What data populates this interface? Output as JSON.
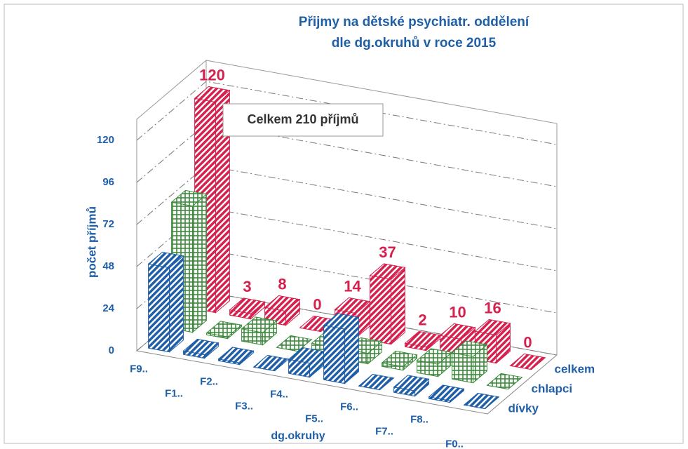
{
  "chart_data": {
    "type": "bar3d",
    "title": [
      "Přijmy na dětské psychiatr. oddělení",
      "dle dg.okruhů v roce 2015"
    ],
    "annotation": "Celkem 210 příjmů",
    "y_label": "počet příjmů",
    "x_label": "dg.okruhy",
    "categories": [
      "F9..",
      "F1..",
      "F2..",
      "F3..",
      "F4..",
      "F5..",
      "F6..",
      "F7..",
      "F8..",
      "F0.."
    ],
    "series": [
      {
        "name": "dívky",
        "color": "#1f5fa8",
        "pattern": "hatch",
        "values": [
          48,
          2,
          1,
          0,
          8,
          31,
          0,
          3,
          1,
          0
        ]
      },
      {
        "name": "chlapci",
        "color": "#3c8a3c",
        "pattern": "grid",
        "values": [
          72,
          1,
          7,
          0,
          6,
          6,
          2,
          7,
          15,
          0
        ]
      },
      {
        "name": "celkem",
        "color": "#d6204e",
        "pattern": "hatch",
        "values": [
          120,
          3,
          8,
          0,
          14,
          37,
          2,
          10,
          16,
          0
        ]
      }
    ],
    "ylim": [
      0,
      132
    ],
    "yticks": [
      0,
      24,
      48,
      72,
      96,
      120
    ],
    "grid": true
  }
}
